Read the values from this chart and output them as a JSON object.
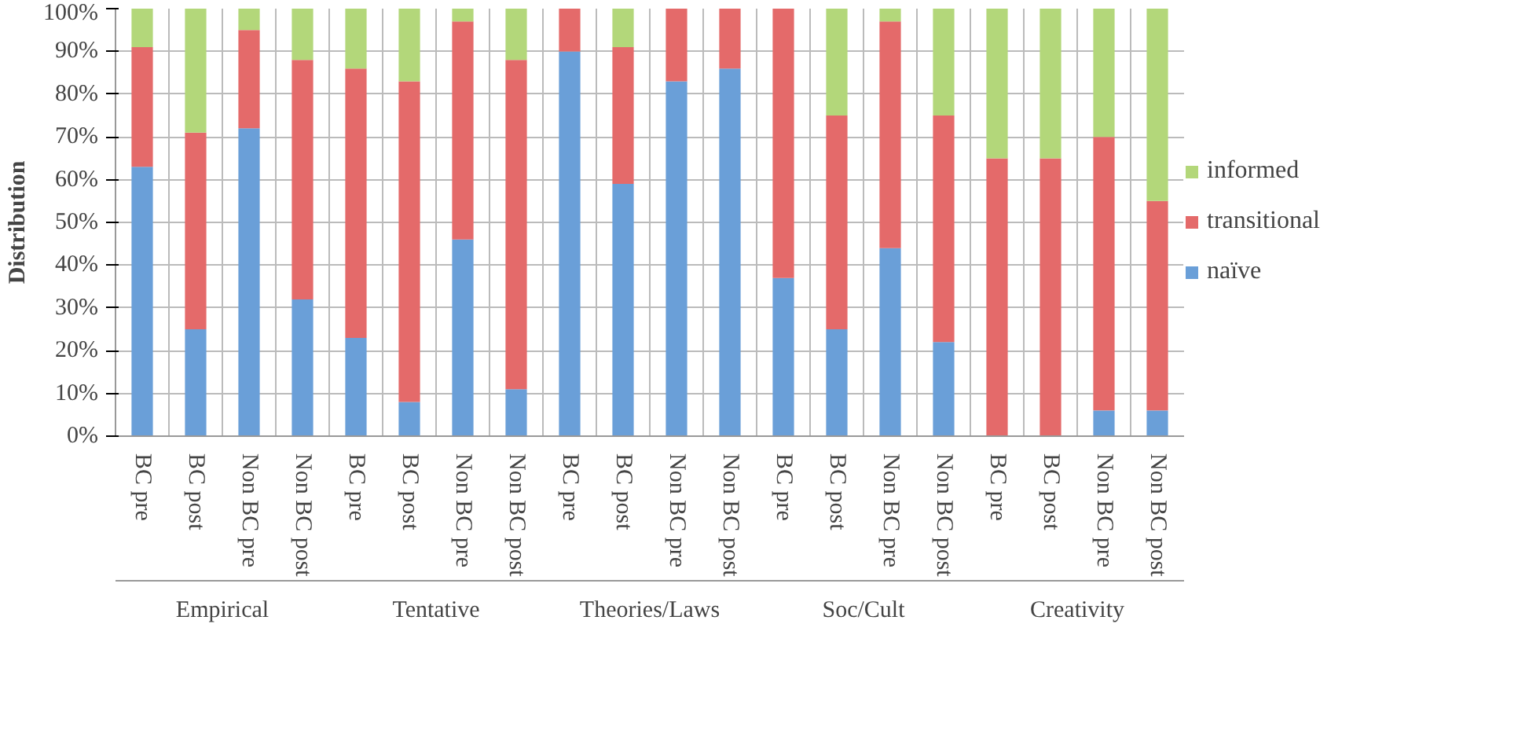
{
  "chart_data": {
    "type": "bar",
    "stacked": true,
    "ylabel": "Distribution",
    "categories": [
      "BC pre",
      "BC post",
      "Non BC pre",
      "Non BC post",
      "BC pre",
      "BC post",
      "Non BC pre",
      "Non BC post",
      "BC pre",
      "BC post",
      "Non BC pre",
      "Non BC post",
      "BC pre",
      "BC post",
      "Non BC pre",
      "Non BC post",
      "BC pre",
      "BC post",
      "Non BC pre",
      "Non BC post"
    ],
    "annotations": [
      "Empirical",
      "Tentative",
      "Theories/Laws",
      "Soc/Cult",
      "Creativity"
    ],
    "series": [
      {
        "name": "naïve",
        "color": "#6a9fd8",
        "values": [
          63,
          25,
          72,
          32,
          23,
          8,
          46,
          11,
          90,
          59,
          83,
          86,
          37,
          25,
          44,
          22,
          0,
          0,
          6,
          6
        ]
      },
      {
        "name": "transitional",
        "color": "#e46a6a",
        "values": [
          28,
          46,
          23,
          56,
          63,
          75,
          51,
          77,
          10,
          32,
          17,
          14,
          63,
          50,
          53,
          53,
          65,
          65,
          64,
          49
        ]
      },
      {
        "name": "informed",
        "color": "#b3d77a",
        "values": [
          9,
          29,
          5,
          12,
          14,
          17,
          3,
          12,
          0,
          9,
          0,
          0,
          0,
          25,
          3,
          25,
          35,
          35,
          30,
          45
        ]
      }
    ],
    "ylim": [
      0,
      100
    ],
    "yticks": [
      {
        "value": 0,
        "label": "0%"
      },
      {
        "value": 10,
        "label": "10%"
      },
      {
        "value": 20,
        "label": "20%"
      },
      {
        "value": 30,
        "label": "30%"
      },
      {
        "value": 40,
        "label": "40%"
      },
      {
        "value": 50,
        "label": "50%"
      },
      {
        "value": 60,
        "label": "60%"
      },
      {
        "value": 70,
        "label": "70%"
      },
      {
        "value": 80,
        "label": "80%"
      },
      {
        "value": 90,
        "label": "90%"
      },
      {
        "value": 100,
        "label": "100%"
      }
    ],
    "grid": true,
    "legend": "right"
  }
}
